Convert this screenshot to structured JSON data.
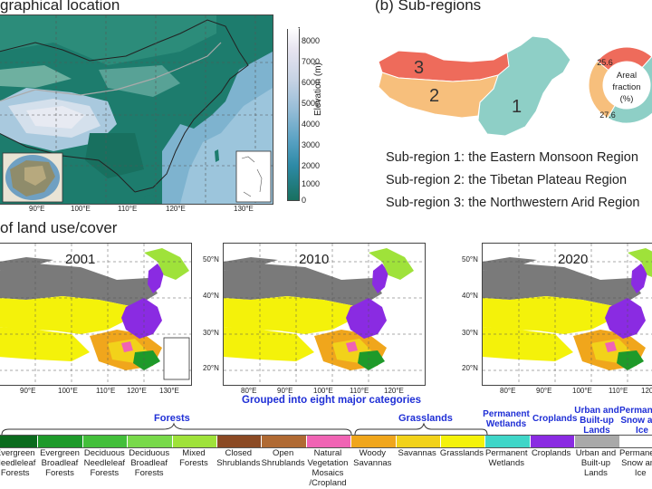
{
  "panel_a": {
    "title": "graphical location",
    "colorbar_label": "Elevation (m)",
    "colorbar_ticks": [
      "8000",
      "7000",
      "6000",
      "5000",
      "4000",
      "3000",
      "2000",
      "1000",
      "0"
    ],
    "lon_ticks": [
      "90°E",
      "100°E",
      "110°E",
      "120°E",
      "130°E"
    ]
  },
  "panel_b": {
    "title": "(b) Sub-regions",
    "region_numbers": [
      "1",
      "2",
      "3"
    ],
    "donut_label": [
      "Areal",
      "fraction",
      "(%)"
    ],
    "fractions": {
      "r1": 46.8,
      "r2": 27.6,
      "r3": 25.6
    },
    "fraction_labels": {
      "r2": "27.6",
      "r3": "25.6"
    },
    "lines": [
      "Sub-region 1: the Eastern Monsoon Region",
      "Sub-region 2: the Tibetan Plateau Region",
      "Sub-region 3: the Northwestern Arid Region"
    ],
    "colors": {
      "r1": "#8ecfc6",
      "r2": "#f7bf7c",
      "r3": "#ee6b5b"
    }
  },
  "panel_c": {
    "title": "of land use/cover",
    "years": [
      "2001",
      "2010",
      "2020"
    ],
    "lat_ticks": [
      "50°N",
      "40°N",
      "30°N",
      "20°N"
    ],
    "lon_ticks_first": [
      "90°E",
      "100°E",
      "110°E",
      "120°E",
      "130°E"
    ],
    "lon_ticks_other": [
      "80°E",
      "90°E",
      "100°E",
      "110°E",
      "120°E"
    ]
  },
  "legend": {
    "heading": "Grouped into eight major categories",
    "groups": [
      "Forests",
      "Grasslands",
      "Permanent\nWetlands",
      "Croplands",
      "Urban and\nBuilt-up\nLands",
      "Permanent\nSnow and\nIce"
    ],
    "classes": [
      {
        "label": "Evergreen\nNeedleleaf\nForests",
        "color": "#0b6b1e"
      },
      {
        "label": "Evergreen\nBroadleaf\nForests",
        "color": "#1e9a2a"
      },
      {
        "label": "Deciduous\nNeedleleaf\nForests",
        "color": "#43bf3a"
      },
      {
        "label": "Deciduous\nBroadleaf\nForests",
        "color": "#78d94a"
      },
      {
        "label": "Mixed\nForests",
        "color": "#9fe23a"
      },
      {
        "label": "Closed\nShrublands",
        "color": "#8b4a24"
      },
      {
        "label": "Open\nShrublands",
        "color": "#b06a33"
      },
      {
        "label": "Natural\nVegetation\nMosaics\n/Cropland",
        "color": "#f064b4"
      },
      {
        "label": "Woody\nSavannas",
        "color": "#f0a61c"
      },
      {
        "label": "Savannas",
        "color": "#f2d21a"
      },
      {
        "label": "Grasslands",
        "color": "#f4f20a"
      },
      {
        "label": "Permanent\nWetlands",
        "color": "#3fd6c8"
      },
      {
        "label": "Croplands",
        "color": "#8a2be2"
      },
      {
        "label": "Urban and\nBuilt-up\nLands",
        "color": "#a9a9a9"
      },
      {
        "label": "Permanent\nSnow and\nIce",
        "color": "#ffffff"
      }
    ]
  }
}
